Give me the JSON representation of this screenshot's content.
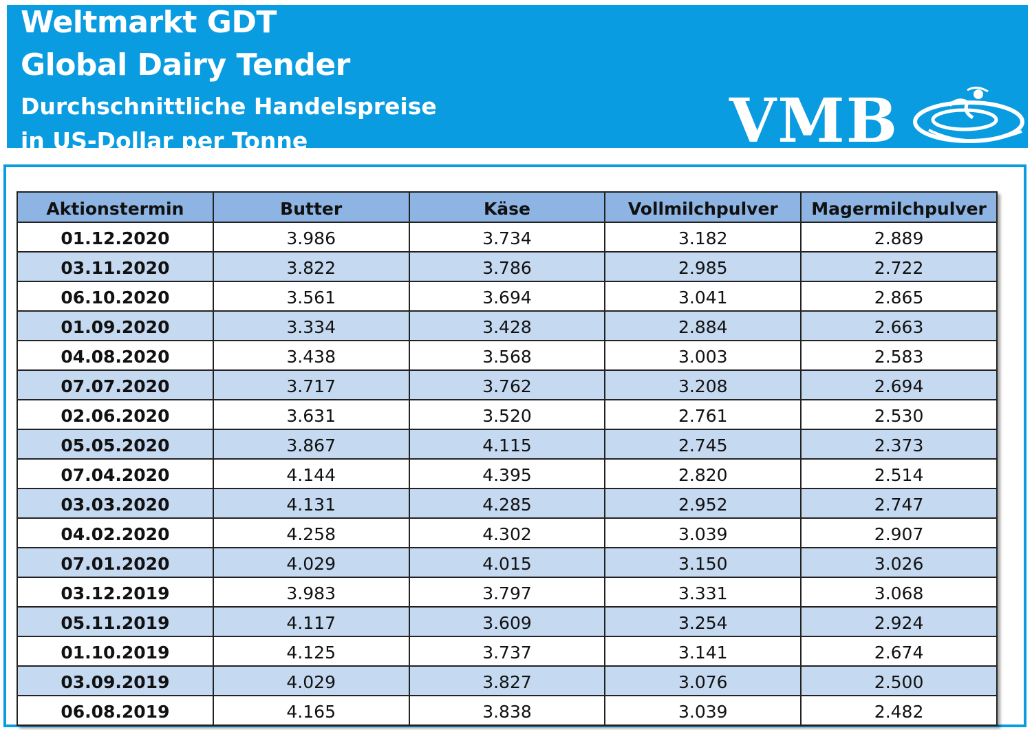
{
  "header": {
    "title_line1": "Weltmarkt GDT",
    "title_line2": "Global Dairy Tender",
    "subtitle_line1": "Durchschnittliche Handelspreise",
    "subtitle_line2": "in US-Dollar per Tonne",
    "logo_text": "VMB",
    "colors": {
      "banner": "#0a9ce0",
      "header_row": "#8db4e2",
      "alt_row": "#c5d9f1"
    }
  },
  "table": {
    "columns": [
      "Aktionstermin",
      "Butter",
      "Käse",
      "Vollmilchpulver",
      "Magermilchpulver"
    ],
    "rows": [
      [
        "01.12.2020",
        "3.986",
        "3.734",
        "3.182",
        "2.889"
      ],
      [
        "03.11.2020",
        "3.822",
        "3.786",
        "2.985",
        "2.722"
      ],
      [
        "06.10.2020",
        "3.561",
        "3.694",
        "3.041",
        "2.865"
      ],
      [
        "01.09.2020",
        "3.334",
        "3.428",
        "2.884",
        "2.663"
      ],
      [
        "04.08.2020",
        "3.438",
        "3.568",
        "3.003",
        "2.583"
      ],
      [
        "07.07.2020",
        "3.717",
        "3.762",
        "3.208",
        "2.694"
      ],
      [
        "02.06.2020",
        "3.631",
        "3.520",
        "2.761",
        "2.530"
      ],
      [
        "05.05.2020",
        "3.867",
        "4.115",
        "2.745",
        "2.373"
      ],
      [
        "07.04.2020",
        "4.144",
        "4.395",
        "2.820",
        "2.514"
      ],
      [
        "03.03.2020",
        "4.131",
        "4.285",
        "2.952",
        "2.747"
      ],
      [
        "04.02.2020",
        "4.258",
        "4.302",
        "3.039",
        "2.907"
      ],
      [
        "07.01.2020",
        "4.029",
        "4.015",
        "3.150",
        "3.026"
      ],
      [
        "03.12.2019",
        "3.983",
        "3.797",
        "3.331",
        "3.068"
      ],
      [
        "05.11.2019",
        "4.117",
        "3.609",
        "3.254",
        "2.924"
      ],
      [
        "01.10.2019",
        "4.125",
        "3.737",
        "3.141",
        "2.674"
      ],
      [
        "03.09.2019",
        "4.029",
        "3.827",
        "3.076",
        "2.500"
      ],
      [
        "06.08.2019",
        "4.165",
        "3.838",
        "3.039",
        "2.482"
      ]
    ]
  }
}
